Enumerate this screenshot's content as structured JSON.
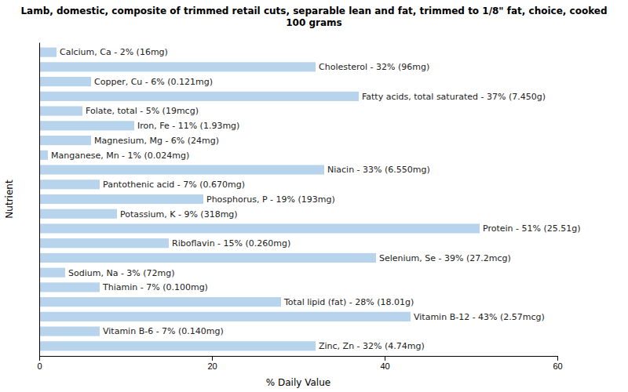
{
  "chart_data": {
    "type": "bar",
    "orientation": "horizontal",
    "title": "Lamb, domestic, composite of trimmed retail cuts, separable lean and fat, trimmed to 1/8\" fat, choice, cooked\n100 grams",
    "xlabel": "% Daily Value",
    "ylabel": "Nutrient",
    "categories": [
      "Calcium, Ca - 2% (16mg)",
      "Cholesterol - 32% (96mg)",
      "Copper, Cu - 6% (0.121mg)",
      "Fatty acids, total saturated - 37% (7.450g)",
      "Folate, total - 5% (19mcg)",
      "Iron, Fe - 11% (1.93mg)",
      "Magnesium, Mg - 6% (24mg)",
      "Manganese, Mn - 1% (0.024mg)",
      "Niacin - 33% (6.550mg)",
      "Pantothenic acid - 7% (0.670mg)",
      "Phosphorus, P - 19% (193mg)",
      "Potassium, K - 9% (318mg)",
      "Protein - 51% (25.51g)",
      "Riboflavin - 15% (0.260mg)",
      "Selenium, Se - 39% (27.2mcg)",
      "Sodium, Na - 3% (72mg)",
      "Thiamin - 7% (0.100mg)",
      "Total lipid (fat) - 28% (18.01g)",
      "Vitamin B-12 - 43% (2.57mcg)",
      "Vitamin B-6 - 7% (0.140mg)",
      "Zinc, Zn - 32% (4.74mg)"
    ],
    "values": [
      2,
      32,
      6,
      37,
      5,
      11,
      6,
      1,
      33,
      7,
      19,
      9,
      51,
      15,
      39,
      3,
      7,
      28,
      43,
      7,
      32
    ],
    "color": "#b8d4ed",
    "xlim": [
      0,
      60
    ],
    "xticks": [
      0,
      20,
      40,
      60
    ],
    "grid": false,
    "tick_labels": "x"
  }
}
